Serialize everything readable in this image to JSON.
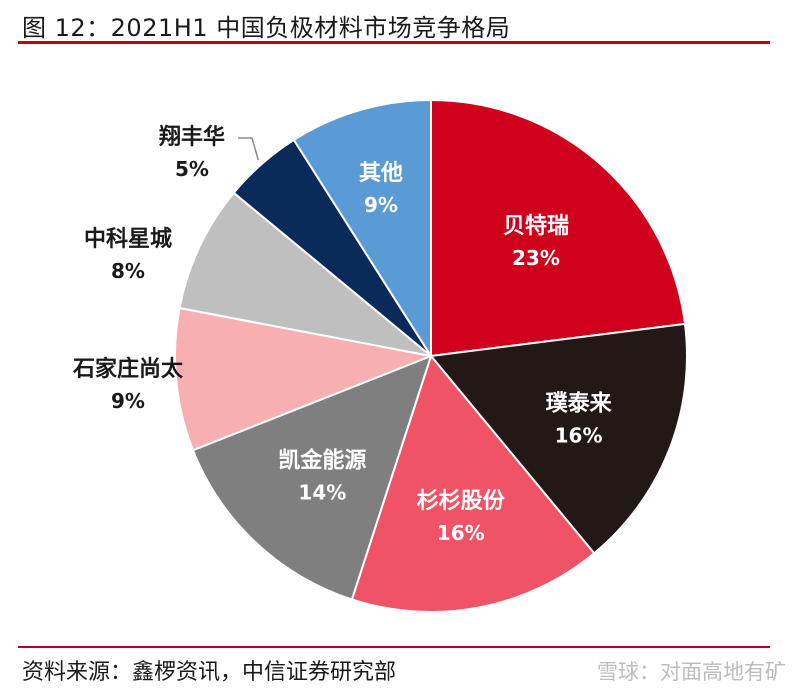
{
  "title": "图 12：2021H1 中国负极材料市场竞争格局",
  "source": "资料来源：鑫椤资讯，中信证券研究部",
  "watermark": "雪球：对面高地有矿",
  "chart_data": {
    "type": "pie",
    "title": "",
    "series": [
      {
        "name": "贝特瑞",
        "value": 23,
        "label": "23%",
        "color": "#d0001c",
        "text_color": "#ffffff"
      },
      {
        "name": "璞泰来",
        "value": 16,
        "label": "16%",
        "color": "#221816",
        "text_color": "#ffffff"
      },
      {
        "name": "杉杉股份",
        "value": 16,
        "label": "16%",
        "color": "#f05366",
        "text_color": "#ffffff"
      },
      {
        "name": "凯金能源",
        "value": 14,
        "label": "14%",
        "color": "#7f7f7f",
        "text_color": "#ffffff"
      },
      {
        "name": "石家庄尚太",
        "value": 9,
        "label": "9%",
        "color": "#f8afb2",
        "text_color": "#1a1a1a"
      },
      {
        "name": "中科星城",
        "value": 8,
        "label": "8%",
        "color": "#bfbfbf",
        "text_color": "#1a1a1a"
      },
      {
        "name": "翔丰华",
        "value": 5,
        "label": "5%",
        "color": "#0a2a5a",
        "text_color": "#1a1a1a"
      },
      {
        "name": "其他",
        "value": 9,
        "label": "9%",
        "color": "#5b9bd5",
        "text_color": "#ffffff"
      }
    ]
  }
}
